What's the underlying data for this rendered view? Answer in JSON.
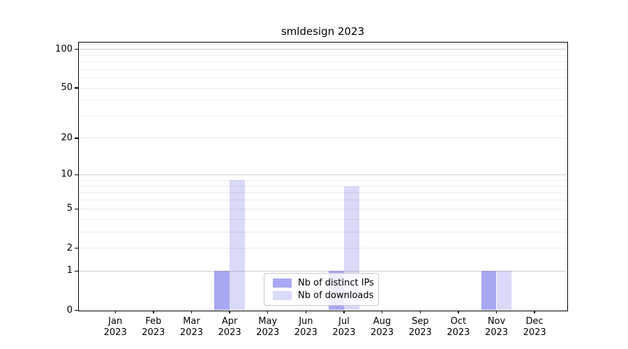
{
  "chart_data": {
    "type": "bar",
    "title": "smldesign 2023",
    "categories": [
      "Jan 2023",
      "Feb 2023",
      "Mar 2023",
      "Apr 2023",
      "May 2023",
      "Jun 2023",
      "Jul 2023",
      "Aug 2023",
      "Sep 2023",
      "Oct 2023",
      "Nov 2023",
      "Dec 2023"
    ],
    "series": [
      {
        "name": "Nb of distinct IPs",
        "color": "#a8a8f2",
        "values": [
          0,
          0,
          0,
          1,
          0,
          0,
          1,
          0,
          0,
          0,
          1,
          0
        ]
      },
      {
        "name": "Nb of downloads",
        "color": "#d9d9f8",
        "values": [
          0,
          0,
          0,
          9,
          0,
          0,
          8,
          0,
          0,
          0,
          1,
          0
        ]
      }
    ],
    "yscale": "log1p",
    "ylim": [
      0,
      113
    ],
    "y_ticks": [
      0,
      1,
      2,
      5,
      10,
      20,
      50,
      100
    ],
    "y_major_gridlines": [
      1,
      10,
      100
    ],
    "y_minor_gridlines": [
      2,
      3,
      4,
      5,
      6,
      7,
      8,
      9,
      20,
      30,
      40,
      50,
      60,
      70,
      80,
      90,
      110
    ],
    "grid": true,
    "legend_position": "lower center",
    "colors": {
      "bar_dark": "#a8a8f2",
      "bar_light": "#d9d9f8",
      "grid_major": "#cdcdcd",
      "grid_minor": "#eaeaea"
    }
  }
}
